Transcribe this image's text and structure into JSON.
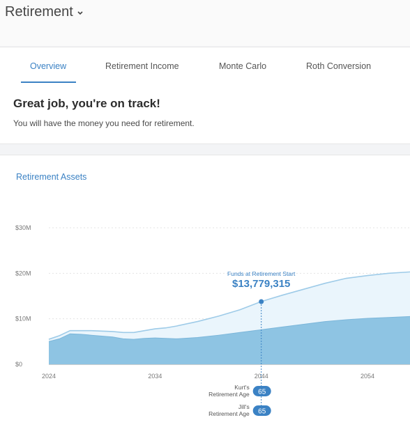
{
  "header": {
    "title": "Retirement"
  },
  "tabs": [
    {
      "label": "Overview",
      "active": true
    },
    {
      "label": "Retirement Income",
      "active": false
    },
    {
      "label": "Monte Carlo",
      "active": false
    },
    {
      "label": "Roth Conversion",
      "active": false
    }
  ],
  "status": {
    "title": "Great job, you're on track!",
    "subtitle": "You will have the money you need for retirement."
  },
  "colors": {
    "accent": "#3b82c4",
    "area_dark": "#8ec4e3",
    "area_light": "#eaf5fc",
    "line": "#9ecbe8"
  },
  "chart_data": {
    "type": "area",
    "title": "Retirement Assets",
    "y_ticks": [
      "$0",
      "$10M",
      "$20M",
      "$30M"
    ],
    "y_tick_values": [
      0,
      10,
      20,
      30
    ],
    "ylim": [
      0,
      30
    ],
    "x_ticks": [
      "2024",
      "2034",
      "2044",
      "2054"
    ],
    "x_tick_values": [
      2024,
      2034,
      2044,
      2054
    ],
    "xlim": [
      2024,
      2058
    ],
    "series": [
      {
        "x": [
          2024,
          2025,
          2026,
          2027,
          2028,
          2029,
          2030,
          2031,
          2032,
          2033,
          2034,
          2035,
          2036,
          2038,
          2040,
          2042,
          2044,
          2046,
          2048,
          2050,
          2052,
          2054,
          2056,
          2058
        ],
        "values": [
          5.0,
          5.6,
          6.7,
          6.6,
          6.4,
          6.2,
          6.0,
          5.6,
          5.5,
          5.7,
          5.8,
          5.7,
          5.6,
          5.9,
          6.4,
          7.0,
          7.6,
          8.2,
          8.8,
          9.4,
          9.8,
          10.1,
          10.3,
          10.5
        ]
      },
      {
        "x": [
          2024,
          2025,
          2026,
          2027,
          2028,
          2029,
          2030,
          2031,
          2032,
          2033,
          2034,
          2035,
          2036,
          2038,
          2040,
          2042,
          2044,
          2046,
          2048,
          2050,
          2052,
          2054,
          2056,
          2058
        ],
        "values": [
          5.5,
          6.3,
          7.4,
          7.4,
          7.4,
          7.3,
          7.2,
          7.0,
          7.0,
          7.4,
          7.8,
          8.0,
          8.4,
          9.4,
          10.6,
          12.0,
          13.8,
          15.2,
          16.5,
          17.8,
          18.9,
          19.5,
          20.0,
          20.3
        ]
      }
    ],
    "annotation": {
      "label": "Funds at Retirement Start",
      "value": "$13,779,315",
      "x": 2044,
      "y": 13.78
    },
    "retirement_ages": [
      {
        "label_line1": "Kurt's",
        "label_line2": "Retirement Age",
        "age": "65"
      },
      {
        "label_line1": "Jill's",
        "label_line2": "Retirement Age",
        "age": "65"
      }
    ]
  }
}
